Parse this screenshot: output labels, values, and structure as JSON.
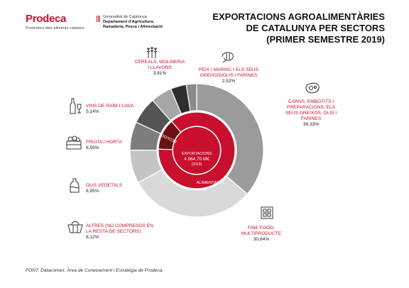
{
  "header": {
    "brand": "Prodeca",
    "brand_tagline": "Promotora dels aliments catalans",
    "gov_line1": "Generalitat de Catalunya",
    "gov_line2": "Departament d’Agricultura,",
    "gov_line3": "Ramaderia, Pesca i Alimentació",
    "title_line1": "EXPORTACIONS AGROALIMENTÀRIES",
    "title_line2": "DE CATALUNYA PER SECTORS",
    "title_line3": "(PRIMER SEMESTRE 2019)"
  },
  "chart_data": {
    "type": "pie",
    "subtype": "sunburst",
    "center": {
      "line1": "EXPORTACIONS",
      "line2": "4.964,70 M€",
      "line3": "(2019)"
    },
    "inner_ring": [
      {
        "label": "ALIMENTACIÓ",
        "value": 86.86,
        "color": "#c8102e"
      },
      {
        "label": "BEGUDES",
        "value": 13.14,
        "color": "#6e0f14"
      }
    ],
    "outer_ring": [
      {
        "label": "CARNS, EMBOTITS I PREPARACIONS, ELS SEUS GREIXOS, OLIS I FARINES",
        "value": 36.33,
        "display": "36,33%",
        "color": "#9b9b9b"
      },
      {
        "label": "FINE FOOD-MULTIPRODUCTE",
        "value": 30.64,
        "display": "30,64%",
        "color": "#d9d9d9"
      },
      {
        "label": "ALTRES (NO COMPRESOS EN LA RESTA DE SECTORS)",
        "value": 8.12,
        "display": "8,12%",
        "color": "#c4c4c4"
      },
      {
        "label": "OLIS VEGETALS",
        "value": 6.85,
        "display": "6,85%",
        "color": "#7d7d7d"
      },
      {
        "label": "FRUITA I HORTA",
        "value": 6.59,
        "display": "6,59%",
        "color": "#555555"
      },
      {
        "label": "VINS DE RAÏM I CAVA",
        "value": 5.14,
        "display": "5,14%",
        "color": "#a6a6a6"
      },
      {
        "label": "CEREALS, MOLINERIA I LLAVORS",
        "value": 3.81,
        "display": "3,81%",
        "color": "#2e2e2e"
      },
      {
        "label": "PEIX I MARISC I ELS SEUS GREIXOS/OLIS I FARINES",
        "value": 2.52,
        "display": "2,52%",
        "color": "#8a8a8a"
      }
    ]
  },
  "labels": {
    "cereals": {
      "name1": "CEREALS, MOLINERIA",
      "name2": "I LLAVORS",
      "pct": "3,81%"
    },
    "peix": {
      "name1": "PEIX I MARISC I ELS SEUS",
      "name2": "GREIXOS/OLIS I FARINES",
      "pct": "2,52%"
    },
    "carns": {
      "name1": "CARNS, EMBOTITS I",
      "name2": "PREPARACIONS, ELS",
      "name3": "SEUS GREIXOS, OLIS I",
      "name4": "FARINES",
      "pct": "36,33%"
    },
    "vins": {
      "name1": "VINS DE RAÏM I CAVA",
      "pct": "5,14%"
    },
    "fruita": {
      "name1": "FRUITA I HORTA",
      "pct": "6,59%"
    },
    "olis": {
      "name1": "OLIS VEGETALS",
      "pct": "6,85%"
    },
    "altres": {
      "name1": "ALTRES (NO COMPRESOS EN",
      "name2": "LA RESTA DE SECTORS)",
      "pct": "8,12%"
    },
    "fine": {
      "name1": "FINE FOOD-",
      "name2": "MULTIPRODUCTE",
      "pct": "30,64%"
    }
  },
  "footer": {
    "source": "FONT:   Datacomex, Àrea de Coneixement i Estratègia de Prodeca."
  }
}
